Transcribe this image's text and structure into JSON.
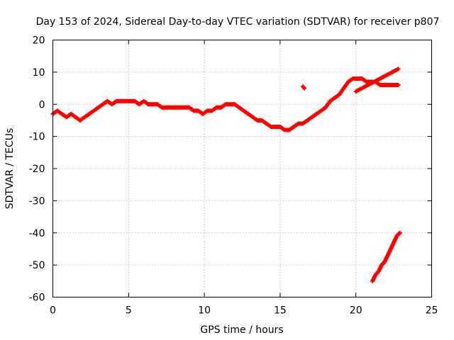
{
  "chart_data": {
    "type": "scatter",
    "title": "Day 153 of 2024, Sidereal Day-to-day VTEC variation (SDTVAR) for receiver p807",
    "xlabel": "GPS time / hours",
    "ylabel": "SDTVAR / TECUs",
    "xlim": [
      0,
      25
    ],
    "ylim": [
      -60,
      20
    ],
    "xticks": [
      0,
      5,
      10,
      15,
      20,
      25
    ],
    "yticks": [
      20,
      10,
      0,
      -10,
      -20,
      -30,
      -40,
      -50,
      -60
    ],
    "grid": true,
    "marker_color": "#ff0000",
    "series": [
      {
        "name": "main-track",
        "x": [
          0.0,
          0.3,
          0.6,
          0.9,
          1.2,
          1.5,
          1.8,
          2.1,
          2.4,
          2.7,
          3.0,
          3.3,
          3.6,
          3.9,
          4.2,
          4.5,
          4.8,
          5.1,
          5.4,
          5.7,
          6.0,
          6.3,
          6.6,
          6.9,
          7.2,
          7.5,
          7.8,
          8.1,
          8.4,
          8.7,
          9.0,
          9.3,
          9.6,
          9.9,
          10.2,
          10.5,
          10.8,
          11.1,
          11.4,
          11.7,
          12.0,
          12.3,
          12.6,
          12.9,
          13.2,
          13.5,
          13.8,
          14.1,
          14.4,
          14.7,
          15.0,
          15.3,
          15.6,
          15.9,
          16.2,
          16.5,
          16.8,
          17.1,
          17.4,
          17.7,
          18.0,
          18.3,
          18.6,
          18.9,
          19.2,
          19.5,
          19.8,
          20.1,
          20.4,
          20.7,
          21.0,
          21.3,
          21.6,
          21.9,
          22.2,
          22.5,
          22.8
        ],
        "y": [
          -3,
          -2,
          -3,
          -4,
          -3,
          -4,
          -5,
          -4,
          -3,
          -2,
          -1,
          0,
          1,
          0,
          1,
          1,
          1,
          1,
          1,
          0,
          1,
          0,
          0,
          0,
          -1,
          -1,
          -1,
          -1,
          -1,
          -1,
          -1,
          -2,
          -2,
          -3,
          -2,
          -2,
          -1,
          -1,
          0,
          0,
          0,
          -1,
          -2,
          -3,
          -4,
          -5,
          -5,
          -6,
          -7,
          -7,
          -7,
          -8,
          -8,
          -7,
          -6,
          -6,
          -5,
          -4,
          -3,
          -2,
          -1,
          1,
          2,
          3,
          5,
          7,
          8,
          8,
          8,
          7,
          7,
          7,
          6,
          6,
          6,
          6,
          6
        ]
      },
      {
        "name": "upper-branch",
        "x": [
          20.0,
          20.4,
          20.8,
          21.2,
          21.6,
          22.0,
          22.4,
          22.8
        ],
        "y": [
          4,
          5,
          6,
          7,
          8,
          9,
          10,
          11
        ]
      },
      {
        "name": "isolated-points",
        "x": [
          16.5,
          16.6
        ],
        "y": [
          5.5,
          5
        ]
      },
      {
        "name": "lower-track",
        "x": [
          21.1,
          21.3,
          21.5,
          21.7,
          21.9,
          22.1,
          22.3,
          22.5,
          22.7,
          22.9
        ],
        "y": [
          -55,
          -53,
          -52,
          -50,
          -49,
          -47,
          -45,
          -43,
          -41,
          -40
        ]
      }
    ]
  }
}
